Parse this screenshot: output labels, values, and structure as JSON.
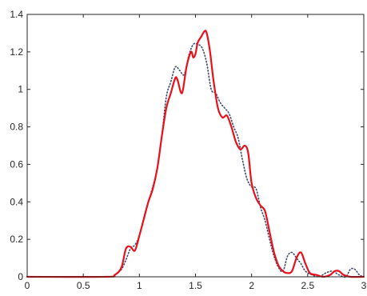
{
  "chart_data": {
    "type": "line",
    "title": "",
    "xlabel": "",
    "ylabel": "",
    "xlim": [
      0,
      3
    ],
    "ylim": [
      0,
      1.4
    ],
    "x_ticks": [
      "0",
      "0.5",
      "1",
      "1.5",
      "2",
      "2.5",
      "3"
    ],
    "y_ticks": [
      "0",
      "0.2",
      "0.4",
      "0.6",
      "0.8",
      "1",
      "1.2",
      "1.4"
    ],
    "grid": false,
    "legend": "none",
    "series": [
      {
        "style": "solid",
        "color": "#e8101b",
        "x": [
          0,
          0.7,
          0.78,
          0.84,
          0.88,
          0.92,
          0.96,
          1.0,
          1.04,
          1.08,
          1.12,
          1.16,
          1.2,
          1.24,
          1.28,
          1.32,
          1.34,
          1.38,
          1.42,
          1.46,
          1.48,
          1.5,
          1.52,
          1.55,
          1.58,
          1.6,
          1.63,
          1.66,
          1.7,
          1.74,
          1.78,
          1.82,
          1.86,
          1.9,
          1.94,
          1.97,
          2.0,
          2.04,
          2.08,
          2.12,
          2.16,
          2.2,
          2.24,
          2.28,
          2.32,
          2.36,
          2.4,
          2.44,
          2.48,
          2.52,
          2.58,
          2.64,
          2.7,
          2.74,
          2.78,
          2.82,
          2.88,
          3.0
        ],
        "y": [
          0,
          0,
          0.01,
          0.05,
          0.15,
          0.16,
          0.14,
          0.22,
          0.31,
          0.4,
          0.47,
          0.58,
          0.75,
          0.9,
          0.98,
          1.06,
          1.05,
          0.98,
          1.12,
          1.2,
          1.17,
          1.19,
          1.25,
          1.28,
          1.31,
          1.3,
          1.2,
          1.05,
          0.9,
          0.85,
          0.86,
          0.8,
          0.72,
          0.68,
          0.7,
          0.66,
          0.5,
          0.42,
          0.38,
          0.35,
          0.24,
          0.13,
          0.06,
          0.03,
          0.02,
          0.03,
          0.1,
          0.13,
          0.07,
          0.02,
          0.01,
          0.0,
          0.01,
          0.03,
          0.03,
          0.01,
          0.0,
          0
        ]
      },
      {
        "style": "dotted",
        "color": "#3b4a6b",
        "x": [
          0,
          0.7,
          0.78,
          0.84,
          0.88,
          0.92,
          0.96,
          1.0,
          1.05,
          1.1,
          1.16,
          1.2,
          1.24,
          1.28,
          1.32,
          1.36,
          1.4,
          1.44,
          1.48,
          1.52,
          1.56,
          1.6,
          1.64,
          1.68,
          1.72,
          1.76,
          1.8,
          1.84,
          1.88,
          1.92,
          1.96,
          2.0,
          2.04,
          2.08,
          2.12,
          2.16,
          2.2,
          2.24,
          2.28,
          2.32,
          2.36,
          2.4,
          2.44,
          2.48,
          2.54,
          2.6,
          2.66,
          2.72,
          2.78,
          2.84,
          2.88,
          2.92,
          2.96,
          3.0
        ],
        "y": [
          0,
          0,
          0.01,
          0.04,
          0.09,
          0.15,
          0.17,
          0.22,
          0.34,
          0.44,
          0.58,
          0.75,
          0.96,
          1.04,
          1.12,
          1.1,
          1.08,
          1.18,
          1.24,
          1.24,
          1.22,
          1.14,
          1.0,
          0.98,
          0.93,
          0.9,
          0.87,
          0.8,
          0.74,
          0.62,
          0.52,
          0.48,
          0.47,
          0.37,
          0.3,
          0.2,
          0.11,
          0.05,
          0.03,
          0.11,
          0.13,
          0.1,
          0.07,
          0.03,
          0.01,
          0.0,
          0.02,
          0.03,
          0.01,
          0.0,
          0.04,
          0.04,
          0.01,
          0
        ]
      }
    ]
  },
  "colors": {
    "axis": "#262626",
    "background": "#ffffff"
  }
}
